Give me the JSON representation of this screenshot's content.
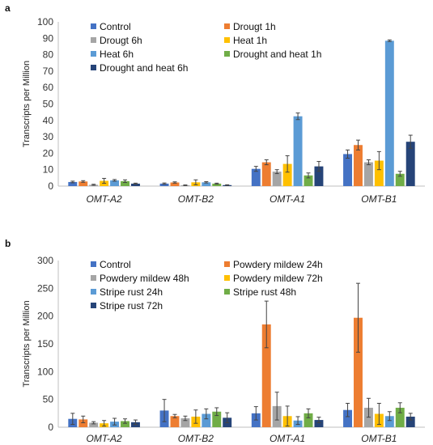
{
  "chart_data": [
    {
      "type": "bar",
      "panel_label": "a",
      "title": "",
      "xlabel": "",
      "ylabel": "Transcripts per Million",
      "ylim": [
        0,
        100
      ],
      "yticks": [
        0,
        10,
        20,
        30,
        40,
        50,
        60,
        70,
        80,
        90,
        100
      ],
      "categories": [
        "OMT-A2",
        "OMT-B2",
        "OMT-A1",
        "OMT-B1"
      ],
      "legend_position": "top",
      "grid": false,
      "series": [
        {
          "name": "Control",
          "color": "#4472C4",
          "values": [
            2.5,
            1.5,
            10.5,
            19.5
          ],
          "errors": [
            0.5,
            0.4,
            1.5,
            2.5
          ]
        },
        {
          "name": "Drougt 1h",
          "color": "#ED7D31",
          "values": [
            2.8,
            2.2,
            14.5,
            25
          ],
          "errors": [
            0.5,
            0.4,
            1.5,
            3
          ]
        },
        {
          "name": "Drougt 6h",
          "color": "#A5A5A5",
          "values": [
            0.8,
            0.5,
            8.8,
            14.5
          ],
          "errors": [
            0.3,
            0.2,
            1.2,
            1.5
          ]
        },
        {
          "name": "Heat 1h",
          "color": "#FFC000",
          "values": [
            3.2,
            2.3,
            13.5,
            15.5
          ],
          "errors": [
            1.5,
            1.5,
            5,
            5.5
          ]
        },
        {
          "name": "Heat 6h",
          "color": "#5B9BD5",
          "values": [
            3.5,
            2.3,
            42.5,
            88.5
          ],
          "errors": [
            0.5,
            0.4,
            2,
            0.5
          ]
        },
        {
          "name": "Drought and heat 1h",
          "color": "#70AD47",
          "values": [
            3,
            1.5,
            6.5,
            7.5
          ],
          "errors": [
            0.8,
            0.3,
            1.5,
            1.5
          ]
        },
        {
          "name": "Drought and heat 6h",
          "color": "#264478",
          "values": [
            1.5,
            0.6,
            12,
            27
          ],
          "errors": [
            0.3,
            0.2,
            3,
            4
          ]
        }
      ]
    },
    {
      "type": "bar",
      "panel_label": "b",
      "title": "",
      "xlabel": "",
      "ylabel": "Transcripts per Million",
      "ylim": [
        0,
        300
      ],
      "yticks": [
        0,
        50,
        100,
        150,
        200,
        250,
        300
      ],
      "categories": [
        "OMT-A2",
        "OMT-B2",
        "OMT-A1",
        "OMT-B1"
      ],
      "legend_position": "top",
      "grid": false,
      "series": [
        {
          "name": "Control",
          "color": "#4472C4",
          "values": [
            15,
            30,
            25,
            31
          ],
          "errors": [
            10,
            20,
            12,
            12
          ]
        },
        {
          "name": "Powdery mildew 24h",
          "color": "#ED7D31",
          "values": [
            14,
            20,
            185,
            197
          ],
          "errors": [
            6,
            3,
            42,
            62
          ]
        },
        {
          "name": "Powdery mildew 48h",
          "color": "#A5A5A5",
          "values": [
            8,
            16,
            38,
            35
          ],
          "errors": [
            2,
            4,
            25,
            17
          ]
        },
        {
          "name": "Powdery mildew 72h",
          "color": "#FFC000",
          "values": [
            7,
            19,
            20,
            24
          ],
          "errors": [
            5,
            12,
            18,
            19
          ]
        },
        {
          "name": "Stripe rust 24h",
          "color": "#5B9BD5",
          "values": [
            10,
            24,
            12,
            20
          ],
          "errors": [
            6,
            9,
            7,
            8
          ]
        },
        {
          "name": "Stripe rust 48h",
          "color": "#70AD47",
          "values": [
            11,
            28,
            25,
            35
          ],
          "errors": [
            4,
            7,
            8,
            9
          ]
        },
        {
          "name": "Stripe rust 72h",
          "color": "#264478",
          "values": [
            9,
            17,
            13,
            19
          ],
          "errors": [
            4,
            9,
            5,
            6
          ]
        }
      ]
    }
  ]
}
